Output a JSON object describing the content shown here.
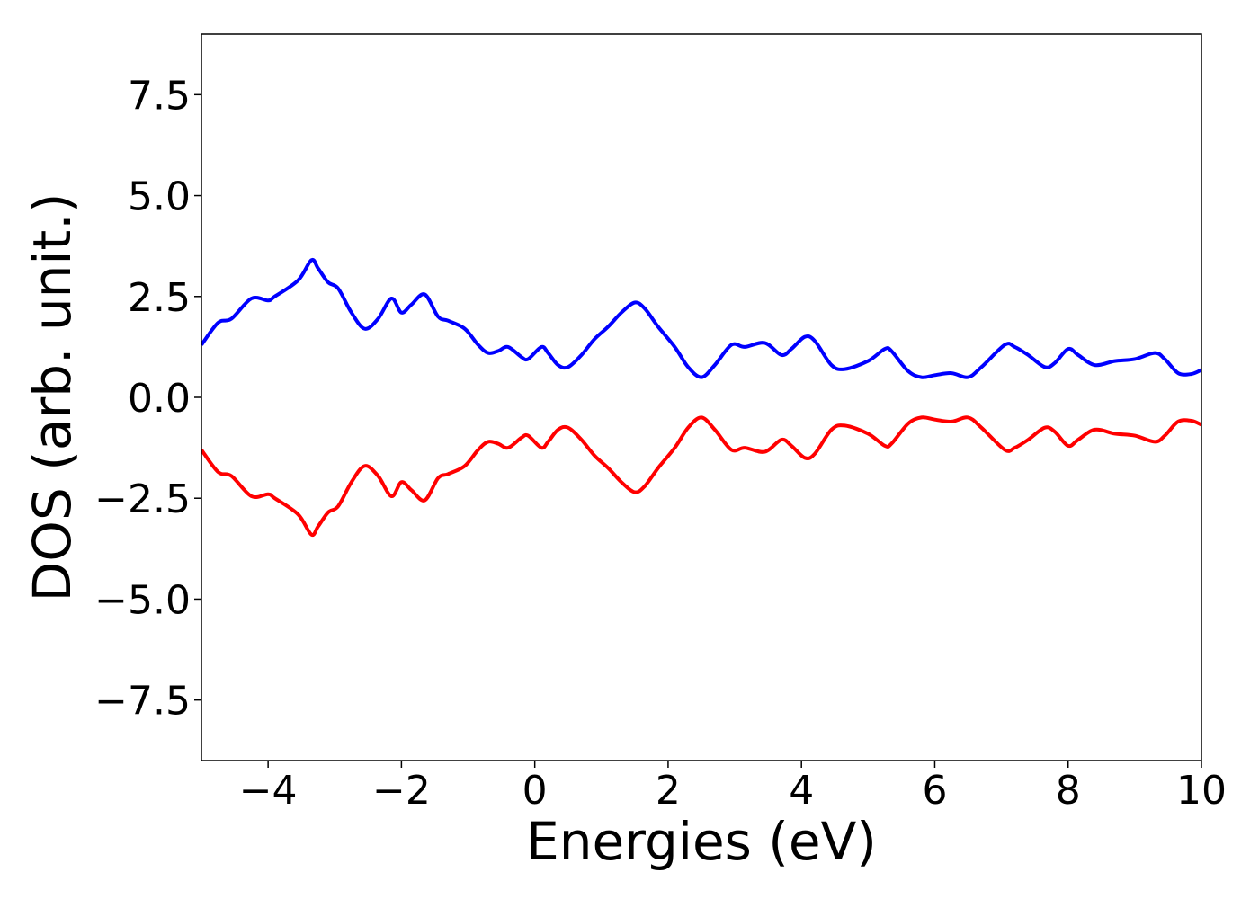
{
  "chart_data": {
    "type": "line",
    "title": "",
    "xlabel": "Energies (eV)",
    "ylabel": "DOS (arb. unit.)",
    "xlim": [
      -5,
      10
    ],
    "ylim": [
      -9.0,
      9.0
    ],
    "xticks": [
      -4,
      -2,
      0,
      2,
      4,
      6,
      8,
      10
    ],
    "xtick_labels": [
      "−4",
      "−2",
      "0",
      "2",
      "4",
      "6",
      "8",
      "10"
    ],
    "yticks": [
      7.5,
      5.0,
      2.5,
      0.0,
      -2.5,
      -5.0,
      -7.5
    ],
    "ytick_labels": [
      "7.5",
      "5.0",
      "2.5",
      "0.0",
      "−2.5",
      "−5.0",
      "−7.5"
    ],
    "grid": false,
    "legend": null,
    "series": [
      {
        "color": "#0000ff",
        "x": [
          -5.0,
          -4.75,
          -4.55,
          -4.25,
          -4.0,
          -3.9,
          -3.55,
          -3.35,
          -3.25,
          -3.1,
          -2.95,
          -2.75,
          -2.55,
          -2.35,
          -2.15,
          -2.0,
          -1.85,
          -1.65,
          -1.45,
          -1.3,
          -1.05,
          -0.85,
          -0.7,
          -0.55,
          -0.4,
          -0.2,
          -0.1,
          0.1,
          0.2,
          0.35,
          0.5,
          0.7,
          0.9,
          1.1,
          1.3,
          1.5,
          1.65,
          1.85,
          2.1,
          2.3,
          2.5,
          2.7,
          2.95,
          3.15,
          3.45,
          3.7,
          3.85,
          4.05,
          4.2,
          4.45,
          4.65,
          5.0,
          5.25,
          5.35,
          5.6,
          5.8,
          6.0,
          6.25,
          6.5,
          6.7,
          7.05,
          7.2,
          7.4,
          7.65,
          7.8,
          8.0,
          8.15,
          8.4,
          8.7,
          9.0,
          9.3,
          9.45,
          9.65,
          9.85,
          10.0
        ],
        "values": [
          1.3,
          1.85,
          1.95,
          2.45,
          2.4,
          2.5,
          2.9,
          3.4,
          3.2,
          2.85,
          2.7,
          2.1,
          1.7,
          1.95,
          2.45,
          2.1,
          2.3,
          2.55,
          2.0,
          1.9,
          1.7,
          1.3,
          1.1,
          1.15,
          1.25,
          1.0,
          0.95,
          1.25,
          1.1,
          0.8,
          0.75,
          1.05,
          1.45,
          1.75,
          2.1,
          2.35,
          2.2,
          1.75,
          1.25,
          0.75,
          0.5,
          0.8,
          1.3,
          1.25,
          1.35,
          1.05,
          1.2,
          1.5,
          1.4,
          0.8,
          0.7,
          0.9,
          1.2,
          1.15,
          0.65,
          0.5,
          0.55,
          0.6,
          0.5,
          0.75,
          1.3,
          1.25,
          1.05,
          0.75,
          0.85,
          1.2,
          1.05,
          0.8,
          0.9,
          0.95,
          1.1,
          0.95,
          0.6,
          0.58,
          0.68
        ]
      },
      {
        "color": "#ff0000",
        "x": [
          -5.0,
          -4.75,
          -4.55,
          -4.25,
          -4.0,
          -3.9,
          -3.55,
          -3.35,
          -3.25,
          -3.1,
          -2.95,
          -2.75,
          -2.55,
          -2.35,
          -2.15,
          -2.0,
          -1.85,
          -1.65,
          -1.45,
          -1.3,
          -1.05,
          -0.85,
          -0.7,
          -0.55,
          -0.4,
          -0.2,
          -0.1,
          0.1,
          0.2,
          0.35,
          0.5,
          0.7,
          0.9,
          1.1,
          1.3,
          1.5,
          1.65,
          1.85,
          2.1,
          2.3,
          2.5,
          2.7,
          2.95,
          3.15,
          3.45,
          3.7,
          3.85,
          4.05,
          4.2,
          4.45,
          4.65,
          5.0,
          5.25,
          5.35,
          5.6,
          5.8,
          6.0,
          6.25,
          6.5,
          6.7,
          7.05,
          7.2,
          7.4,
          7.65,
          7.8,
          8.0,
          8.15,
          8.4,
          8.7,
          9.0,
          9.3,
          9.45,
          9.65,
          9.85,
          10.0
        ],
        "values": [
          -1.3,
          -1.85,
          -1.95,
          -2.45,
          -2.4,
          -2.5,
          -2.9,
          -3.4,
          -3.2,
          -2.85,
          -2.7,
          -2.1,
          -1.7,
          -1.95,
          -2.45,
          -2.1,
          -2.3,
          -2.55,
          -2.0,
          -1.9,
          -1.7,
          -1.3,
          -1.1,
          -1.15,
          -1.25,
          -1.0,
          -0.95,
          -1.25,
          -1.1,
          -0.8,
          -0.75,
          -1.05,
          -1.45,
          -1.75,
          -2.1,
          -2.35,
          -2.2,
          -1.75,
          -1.25,
          -0.75,
          -0.5,
          -0.8,
          -1.3,
          -1.25,
          -1.35,
          -1.05,
          -1.2,
          -1.5,
          -1.4,
          -0.8,
          -0.7,
          -0.9,
          -1.2,
          -1.15,
          -0.65,
          -0.5,
          -0.55,
          -0.6,
          -0.5,
          -0.75,
          -1.3,
          -1.25,
          -1.05,
          -0.75,
          -0.85,
          -1.2,
          -1.05,
          -0.8,
          -0.9,
          -0.95,
          -1.1,
          -0.95,
          -0.6,
          -0.58,
          -0.68
        ]
      }
    ]
  }
}
